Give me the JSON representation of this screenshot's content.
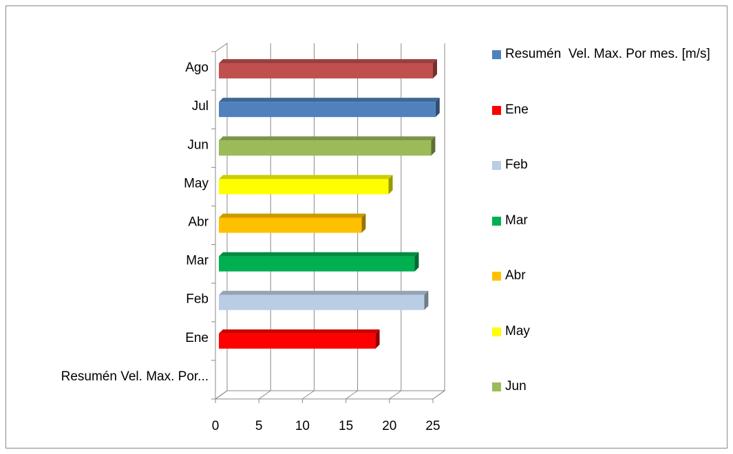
{
  "chart_data": {
    "type": "bar",
    "orientation": "horizontal",
    "categories": [
      "Resumén  Vel. Max. Por...",
      "Ene",
      "Feb",
      "Mar",
      "Abr",
      "May",
      "Jun",
      "Jul",
      "Ago"
    ],
    "values": [
      null,
      18.4,
      24.0,
      22.9,
      16.8,
      19.9,
      24.8,
      25.3,
      25.0
    ],
    "colors": [
      "#4f81bd",
      "#ff0000",
      "#b9cde5",
      "#00b050",
      "#ffc000",
      "#ffff00",
      "#9bbb59",
      "#4f81bd",
      "#c0504d"
    ],
    "xlim": [
      0,
      25
    ],
    "xticks": [
      0,
      5,
      10,
      15,
      20,
      25
    ],
    "grid": true,
    "legend": [
      {
        "name": "Resumén  Vel. Max. Por mes. [m/s]",
        "color": "#4f81bd"
      },
      {
        "name": "Ene",
        "color": "#ff0000"
      },
      {
        "name": "Feb",
        "color": "#b9cde5"
      },
      {
        "name": "Mar",
        "color": "#00b050"
      },
      {
        "name": "Abr",
        "color": "#ffc000"
      },
      {
        "name": "May",
        "color": "#ffff00"
      },
      {
        "name": "Jun",
        "color": "#9bbb59"
      }
    ]
  }
}
